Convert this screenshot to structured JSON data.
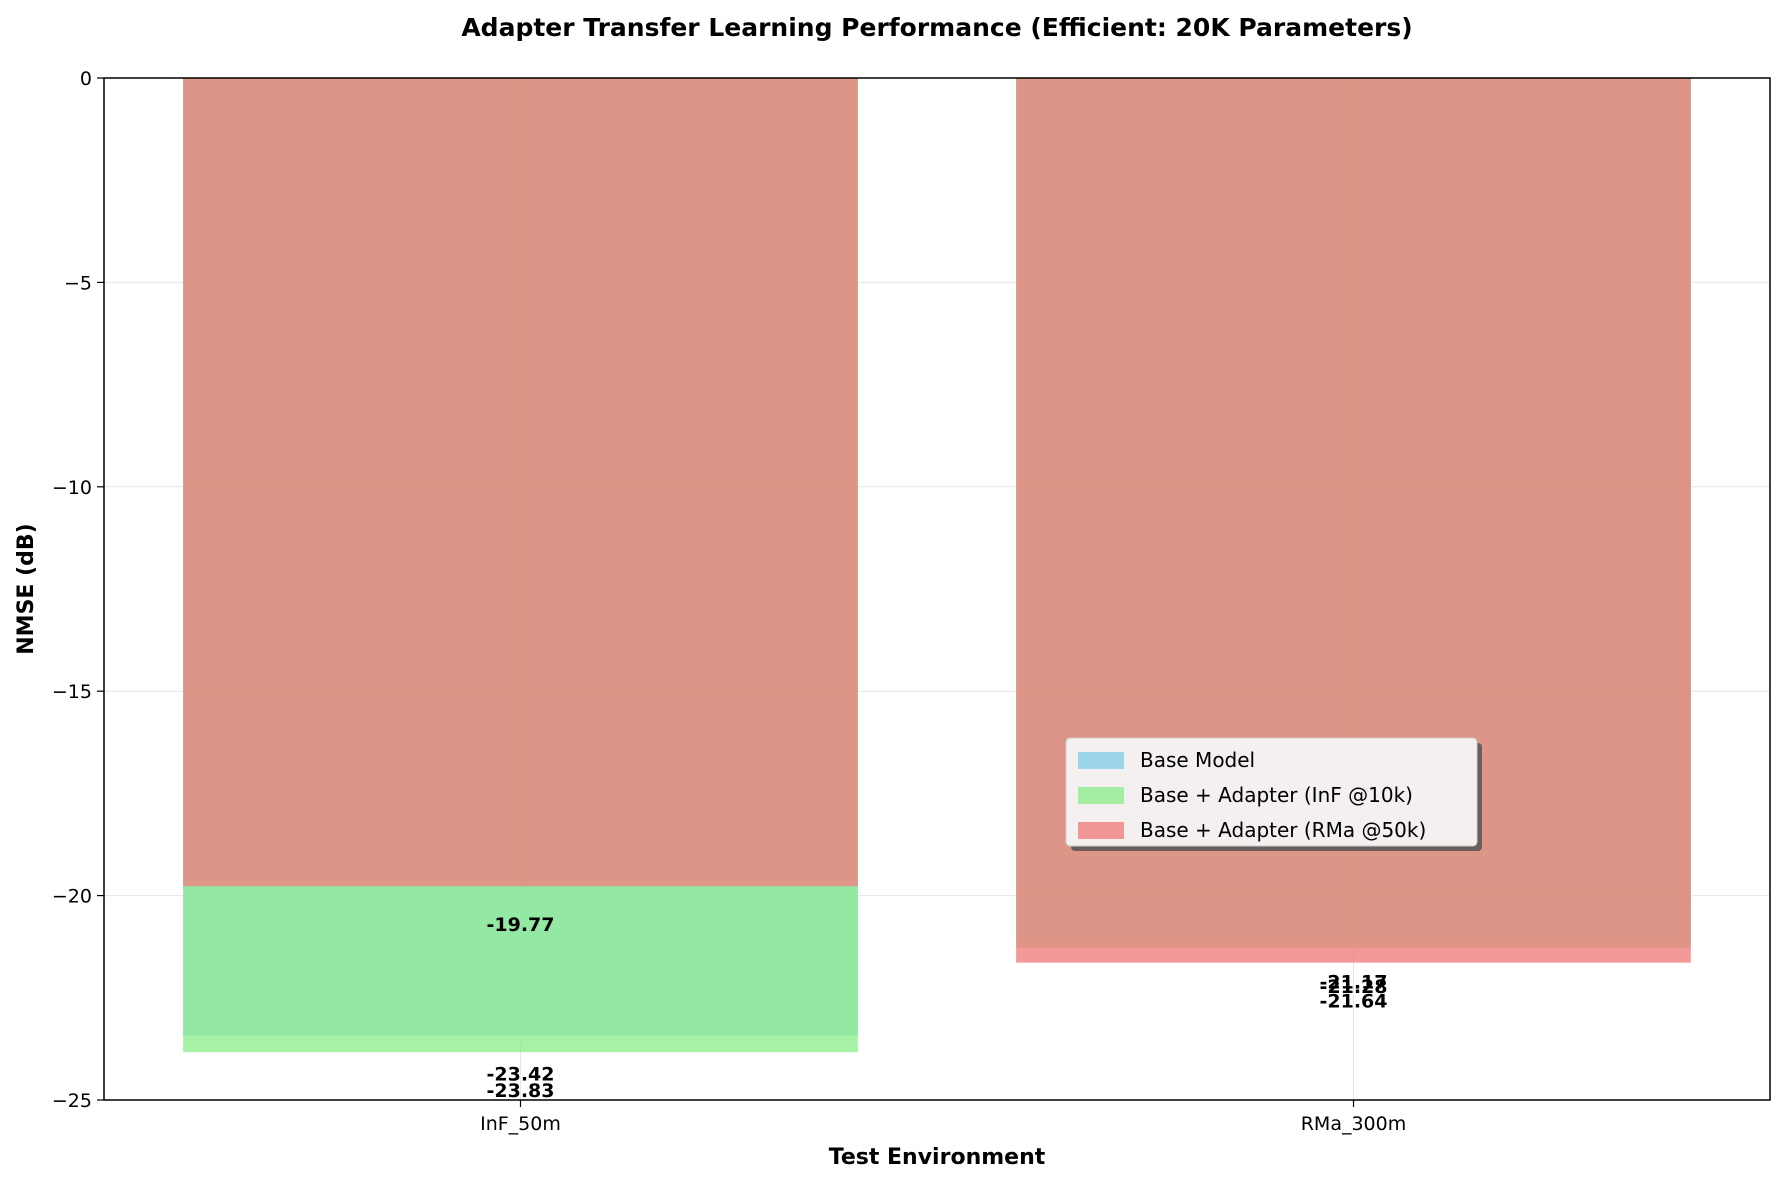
{
  "chart_data": {
    "type": "bar",
    "title": "Adapter Transfer Learning Performance (Efficient: 20K Parameters)",
    "xlabel": "Test Environment",
    "ylabel": "NMSE (dB)",
    "categories": [
      "InF_50m",
      "RMa_300m"
    ],
    "ylim": [
      -25,
      0
    ],
    "yticks": [
      0,
      -5,
      -10,
      -15,
      -20,
      -25
    ],
    "yticks_labels": [
      "0",
      "−5",
      "−10",
      "−15",
      "−20",
      "−25"
    ],
    "grid": true,
    "legend_position": "center-right",
    "series": [
      {
        "name": "Base Model",
        "color": "#87ceeb",
        "values": [
          -23.42,
          -21.17
        ]
      },
      {
        "name": "Base + Adapter (InF @10k)",
        "color": "#90ee90",
        "values": [
          -23.83,
          -21.28
        ]
      },
      {
        "name": "Base + Adapter (RMa @50k)",
        "color": "#f08080",
        "values": [
          -19.77,
          -21.64
        ]
      }
    ],
    "data_labels": [
      [
        "-23.42",
        "-21.17"
      ],
      [
        "-23.83",
        "-21.28"
      ],
      [
        "-19.77",
        "-21.64"
      ]
    ]
  }
}
